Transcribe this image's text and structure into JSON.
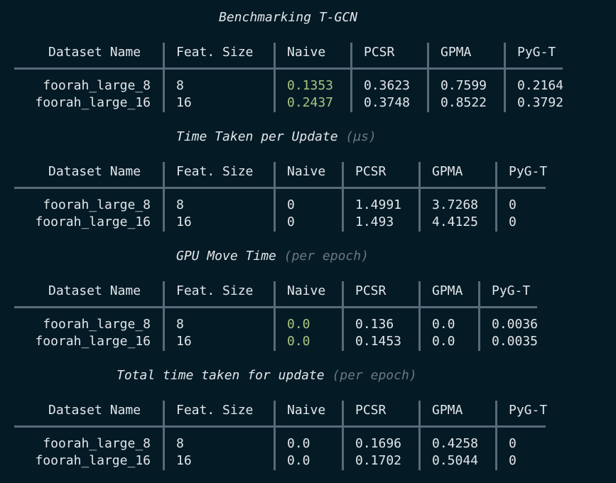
{
  "columns": [
    "Dataset Name",
    "Feat. Size",
    "Naive",
    "PCSR",
    "GPMA",
    "PyG-T"
  ],
  "colors": {
    "background": "#041b26",
    "text": "#e3e6ea",
    "muted": "#6b7683",
    "highlight": "#a9c47f",
    "rule": "#5a6a78"
  },
  "tables": [
    {
      "title": "Benchmarking T-GCN",
      "subtitle": "",
      "highlight_col": 2,
      "rows": [
        [
          "foorah_large_8",
          "8",
          "0.1353",
          "0.3623",
          "0.7599",
          "0.2164"
        ],
        [
          "foorah_large_16",
          "16",
          "0.2437",
          "0.3748",
          "0.8522",
          "0.3792"
        ]
      ]
    },
    {
      "title": "Time Taken per Update",
      "subtitle": "(µs)",
      "highlight_col": -1,
      "rows": [
        [
          "foorah_large_8",
          "8",
          "0",
          "1.4991",
          "3.7268",
          "0"
        ],
        [
          "foorah_large_16",
          "16",
          "0",
          "1.493",
          "4.4125",
          "0"
        ]
      ]
    },
    {
      "title": "GPU Move Time",
      "subtitle": "(per epoch)",
      "highlight_col": 2,
      "rows": [
        [
          "foorah_large_8",
          "8",
          "0.0",
          "0.136",
          "0.0",
          "0.0036"
        ],
        [
          "foorah_large_16",
          "16",
          "0.0",
          "0.1453",
          "0.0",
          "0.0035"
        ]
      ]
    },
    {
      "title": "Total time taken for update",
      "subtitle": "(per epoch)",
      "highlight_col": -1,
      "rows": [
        [
          "foorah_large_8",
          "8",
          "0.0",
          "0.1696",
          "0.4258",
          "0"
        ],
        [
          "foorah_large_16",
          "16",
          "0.0",
          "0.1702",
          "0.5044",
          "0"
        ]
      ]
    }
  ]
}
